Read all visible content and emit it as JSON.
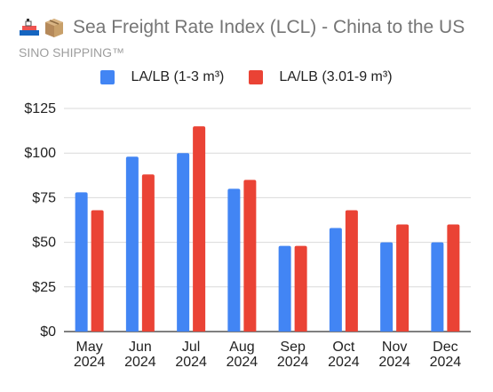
{
  "header": {
    "icons": [
      "ship-icon",
      "package-icon"
    ],
    "title": "Sea Freight Rate Index (LCL) - China to the US",
    "subtitle": "SINO SHIPPING™"
  },
  "colors": {
    "series1": "#4285f4",
    "series2": "#ea4335",
    "grid": "#d9d9d9",
    "text": "#222222"
  },
  "chart_data": {
    "type": "bar",
    "title": "Sea Freight Rate Index (LCL) - China to the US",
    "categories": [
      "May 2024",
      "Jun 2024",
      "Jul 2024",
      "Aug 2024",
      "Sep 2024",
      "Oct 2024",
      "Nov 2024",
      "Dec 2024"
    ],
    "series": [
      {
        "name": "LA/LB (1-3 m³)",
        "values": [
          78,
          98,
          100,
          80,
          48,
          58,
          50,
          50
        ]
      },
      {
        "name": "LA/LB (3.01-9 m³)",
        "values": [
          68,
          88,
          115,
          85,
          48,
          68,
          60,
          60
        ]
      }
    ],
    "yticks": [
      "$0",
      "$25",
      "$50",
      "$75",
      "$100",
      "$125"
    ],
    "ylim": [
      0,
      125
    ],
    "grid": true,
    "legend": "top-center"
  }
}
